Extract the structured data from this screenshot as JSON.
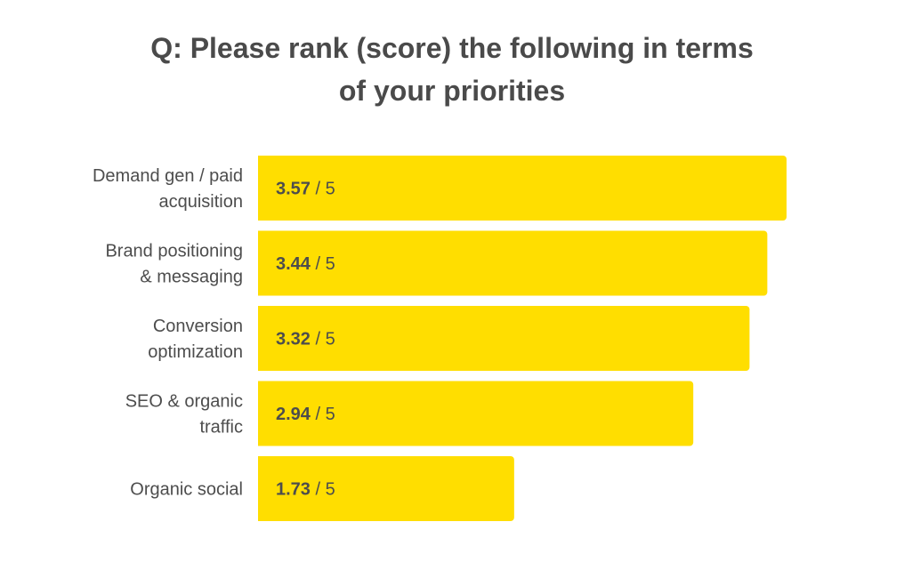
{
  "title_lines": [
    "Q: Please rank (score) the following in terms",
    "of your priorities"
  ],
  "colors": {
    "bar": "#ffde00",
    "text": "#4d4d4d"
  },
  "chart_data": {
    "type": "bar",
    "orientation": "horizontal",
    "title": "Q: Please rank (score) the following in terms of your priorities",
    "categories": [
      [
        "Demand gen / paid",
        "acquisition"
      ],
      [
        "Brand positioning",
        "& messaging"
      ],
      [
        "Conversion",
        "optimization"
      ],
      [
        "SEO & organic",
        "traffic"
      ],
      [
        "Organic social"
      ]
    ],
    "values": [
      3.57,
      3.44,
      3.32,
      2.94,
      1.73
    ],
    "value_suffix": " / 5",
    "xlim": [
      0,
      3.57
    ],
    "grid": false,
    "legend": "none"
  }
}
